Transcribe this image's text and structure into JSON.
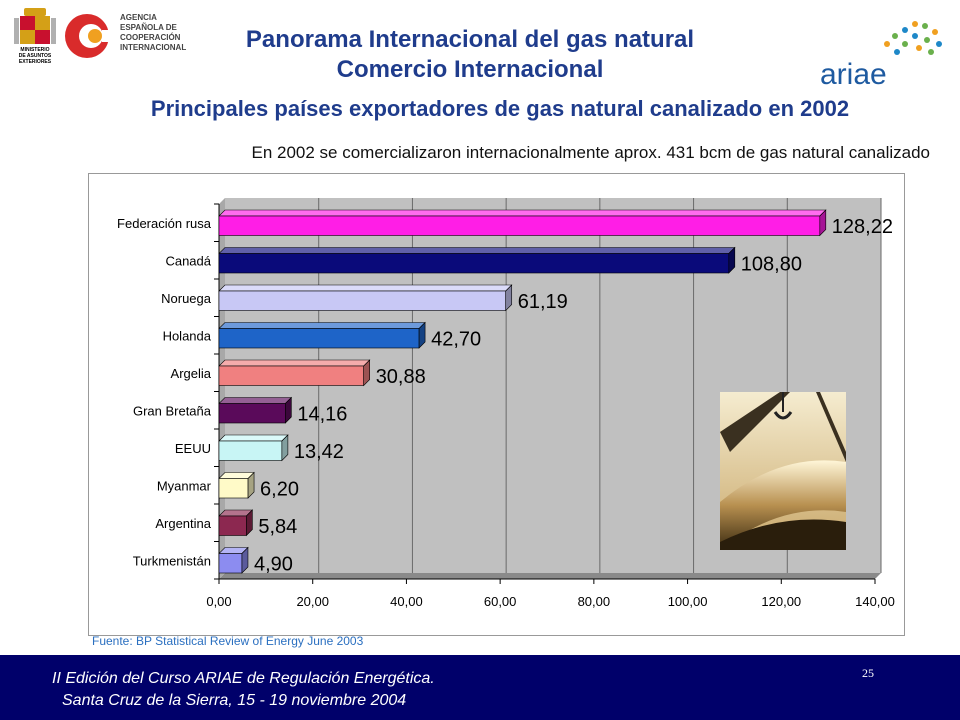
{
  "header": {
    "title_line1": "Panorama Internacional del gas natural",
    "title_line2": "Comercio Internacional",
    "logo_aecid_lines": [
      "AGENCIA",
      "ESPAÑOLA DE",
      "COOPERACIÓN",
      "INTERNACIONAL"
    ],
    "logo_ministry_lines": [
      "MINISTERIO",
      "DE ASUNTOS",
      "EXTERIORES"
    ],
    "logo_ariae_text": "ariae"
  },
  "slide": {
    "subtitle": "Principales países exportadores de gas natural canalizado en 2002",
    "note": "En 2002 se comercializaron internacionalmente aprox. 431 bcm de gas natural canalizado",
    "source": "Fuente: BP Statistical Review of Energy June 2003"
  },
  "chart_data": {
    "type": "bar",
    "orientation": "horizontal",
    "categories": [
      "Federación rusa",
      "Canadá",
      "Noruega",
      "Holanda",
      "Argelia",
      "Gran Bretaña",
      "EEUU",
      "Myanmar",
      "Argentina",
      "Turkmenistán"
    ],
    "values": [
      128.22,
      108.8,
      61.19,
      42.7,
      30.88,
      14.16,
      13.42,
      6.2,
      5.84,
      4.9
    ],
    "value_labels": [
      "128,22",
      "108,80",
      "61,19",
      "42,70",
      "30,88",
      "14,16",
      "13,42",
      "6,20",
      "5,84",
      "4,90"
    ],
    "colors": [
      "#ff1ee6",
      "#0a0a7a",
      "#c8c8f5",
      "#1e64c8",
      "#f08080",
      "#5a0a5a",
      "#c8f5f5",
      "#fffac8",
      "#8c2850",
      "#8c8cf0"
    ],
    "x_ticks": [
      "0,00",
      "20,00",
      "40,00",
      "60,00",
      "80,00",
      "100,00",
      "120,00",
      "140,00"
    ],
    "xlim": [
      0,
      140
    ],
    "plot_background": "#c0c0c0",
    "grid": true
  },
  "footer": {
    "line1": "II Edición del Curso ARIAE de Regulación Energética.",
    "line2": "Santa Cruz de la Sierra, 15 - 19 noviembre 2004",
    "page_number": "25"
  }
}
